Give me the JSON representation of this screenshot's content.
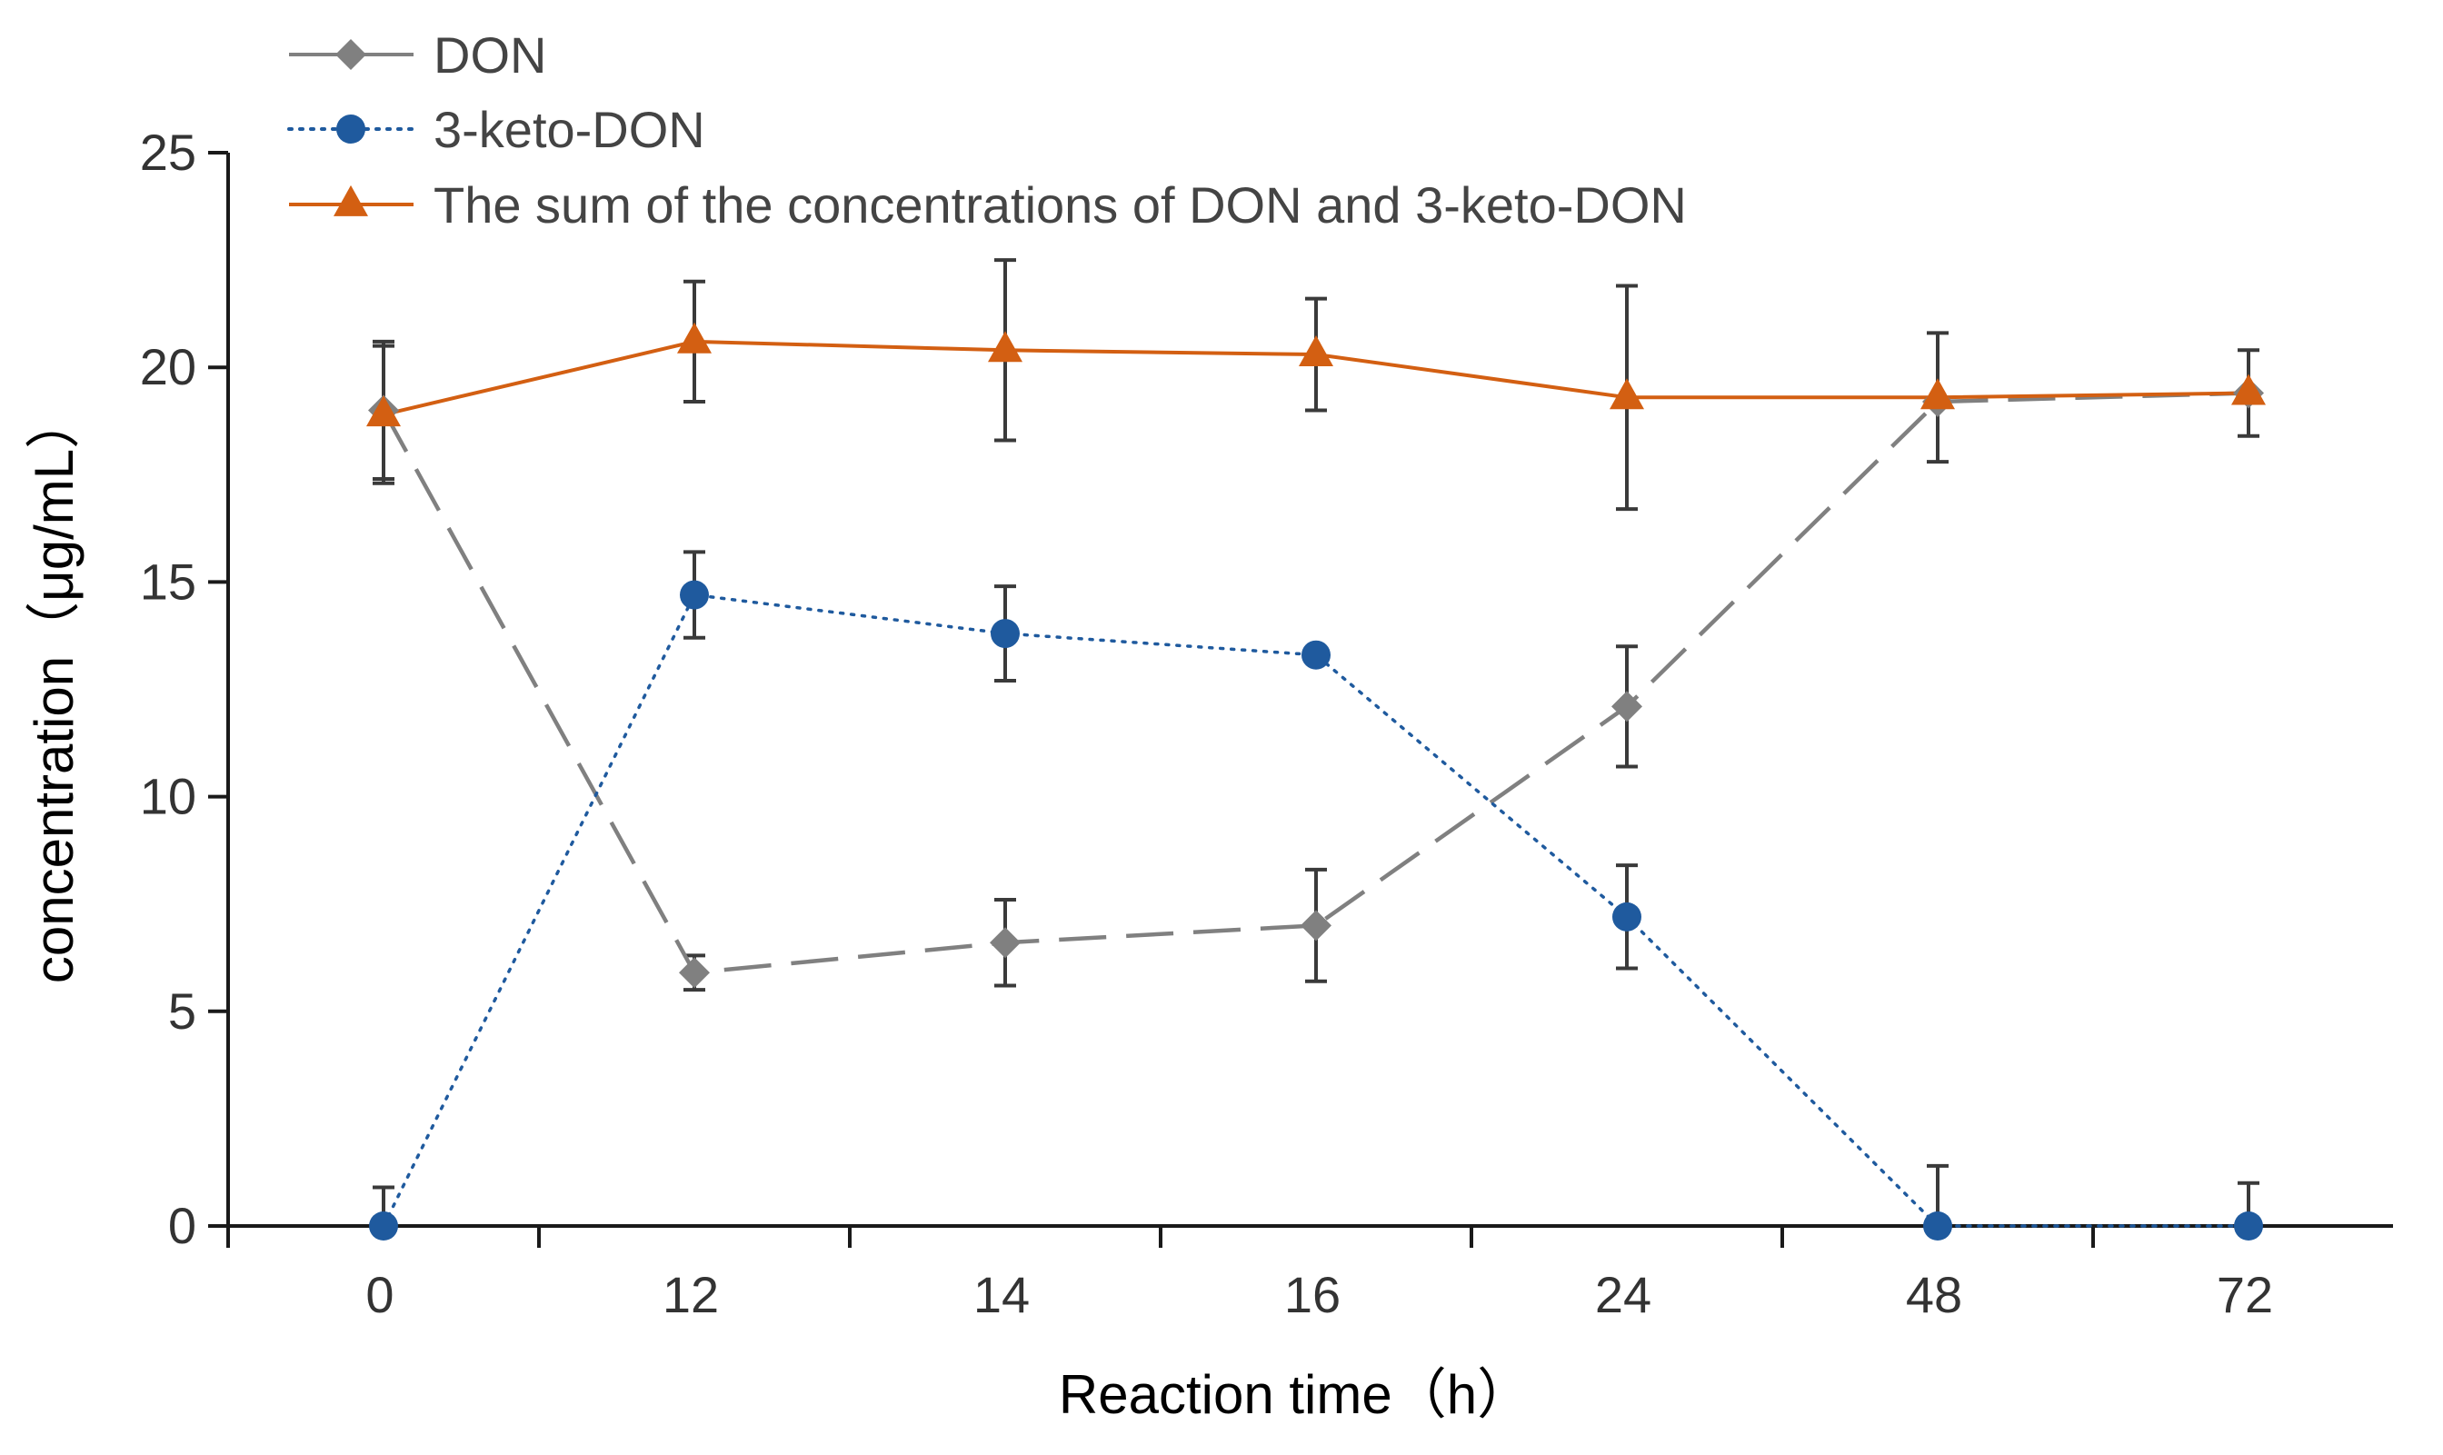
{
  "chart_data": {
    "type": "line",
    "title": "",
    "xlabel": "Reaction time（h）",
    "ylabel": "concentration（μg/mL）",
    "categories": [
      "0",
      "12",
      "14",
      "16",
      "24",
      "48",
      "72"
    ],
    "yticks": [
      "0",
      "5",
      "10",
      "15",
      "20",
      "25"
    ],
    "ylim": [
      0,
      25
    ],
    "grid": false,
    "legend": "top-left",
    "series": [
      {
        "name": "DON",
        "color": "#808080",
        "line_style": "dashed",
        "marker": "diamond",
        "values": [
          19.0,
          5.9,
          6.6,
          7.0,
          12.1,
          19.2,
          19.4
        ],
        "errors": [
          1.6,
          0.4,
          1.0,
          1.3,
          1.4,
          0.0,
          0.0
        ]
      },
      {
        "name": "3-keto-DON",
        "color": "#1F5A9E",
        "line_style": "dotted",
        "marker": "circle",
        "values": [
          0.0,
          14.7,
          13.8,
          13.3,
          7.2,
          0.0,
          0.0
        ],
        "errors": [
          0.9,
          1.0,
          1.1,
          0.0,
          1.2,
          1.4,
          1.0
        ]
      },
      {
        "name": "The sum of the concentrations of DON and 3-keto-DON",
        "color": "#D35F12",
        "line_style": "solid",
        "marker": "triangle",
        "values": [
          18.9,
          20.6,
          20.4,
          20.3,
          19.3,
          19.3,
          19.4
        ],
        "errors": [
          1.6,
          1.4,
          2.1,
          1.3,
          2.6,
          1.5,
          1.0
        ]
      }
    ]
  }
}
